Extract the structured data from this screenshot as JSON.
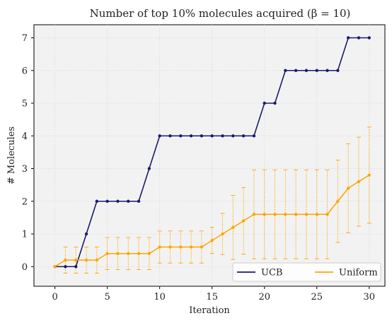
{
  "chart_data": {
    "type": "line",
    "title": "Number of top 10% molecules acquired (β = 10)",
    "xlabel": "Iteration",
    "ylabel": "# Molecules",
    "xlim": [
      -2,
      31.5
    ],
    "ylim": [
      -0.6,
      7.4
    ],
    "xticks": [
      0,
      5,
      10,
      15,
      20,
      25,
      30
    ],
    "yticks": [
      0,
      1,
      2,
      3,
      4,
      5,
      6,
      7
    ],
    "grid": true,
    "legend_position": "lower-right",
    "x": [
      0,
      1,
      2,
      3,
      4,
      5,
      6,
      7,
      8,
      9,
      10,
      11,
      12,
      13,
      14,
      15,
      16,
      17,
      18,
      19,
      20,
      21,
      22,
      23,
      24,
      25,
      26,
      27,
      28,
      29,
      30
    ],
    "series": [
      {
        "name": "UCB",
        "color": "#1a1a6e",
        "values": [
          0,
          0,
          0,
          1,
          2,
          2,
          2,
          2,
          2,
          3,
          4,
          4,
          4,
          4,
          4,
          4,
          4,
          4,
          4,
          4,
          5,
          5,
          6,
          6,
          6,
          6,
          6,
          6,
          7,
          7,
          7
        ]
      },
      {
        "name": "Uniform",
        "color": "#ffa500",
        "values": [
          0,
          0.2,
          0.2,
          0.2,
          0.2,
          0.4,
          0.4,
          0.4,
          0.4,
          0.4,
          0.6,
          0.6,
          0.6,
          0.6,
          0.6,
          0.8,
          1.0,
          1.2,
          1.4,
          1.6,
          1.6,
          1.6,
          1.6,
          1.6,
          1.6,
          1.6,
          1.6,
          2.0,
          2.4,
          2.6,
          2.8
        ],
        "error": [
          0,
          0.4,
          0.4,
          0.4,
          0.4,
          0.49,
          0.49,
          0.49,
          0.49,
          0.49,
          0.49,
          0.49,
          0.49,
          0.49,
          0.49,
          0.4,
          0.63,
          0.98,
          1.02,
          1.36,
          1.36,
          1.36,
          1.36,
          1.36,
          1.36,
          1.36,
          1.36,
          1.26,
          1.36,
          1.36,
          1.47
        ]
      }
    ]
  }
}
